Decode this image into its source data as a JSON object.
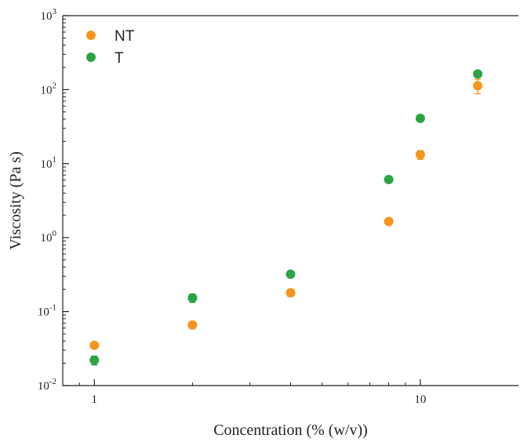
{
  "chart_data": {
    "type": "scatter",
    "title": "",
    "xlabel": "Concentration (% (w/v))",
    "ylabel": "Viscosity (Pa s)",
    "x_scale": "log",
    "y_scale": "log",
    "xlim": [
      0.8,
      20
    ],
    "ylim": [
      0.01,
      1000
    ],
    "x_ticks": [
      {
        "value": 1,
        "label": "1"
      },
      {
        "value": 10,
        "label": "10"
      }
    ],
    "y_ticks": [
      {
        "value": 0.01,
        "base": "10",
        "exp": "-2"
      },
      {
        "value": 0.1,
        "base": "10",
        "exp": "-1"
      },
      {
        "value": 1,
        "base": "10",
        "exp": "0"
      },
      {
        "value": 10,
        "base": "10",
        "exp": "1"
      },
      {
        "value": 100,
        "base": "10",
        "exp": "2"
      },
      {
        "value": 1000,
        "base": "10",
        "exp": "3"
      }
    ],
    "grid": false,
    "legend_position": "top-left",
    "series": [
      {
        "name": "NT",
        "color": "#f7941d",
        "points": [
          {
            "x": 1,
            "y": 0.035,
            "err": 0.003
          },
          {
            "x": 2,
            "y": 0.066,
            "err": 0.007
          },
          {
            "x": 4,
            "y": 0.18,
            "err": 0.02
          },
          {
            "x": 8,
            "y": 1.65,
            "err": 0.1
          },
          {
            "x": 10,
            "y": 13.2,
            "err": 1.8
          },
          {
            "x": 15,
            "y": 113,
            "err": 25
          }
        ]
      },
      {
        "name": "T",
        "color": "#2ca444",
        "points": [
          {
            "x": 1,
            "y": 0.022,
            "err": 0.003
          },
          {
            "x": 2,
            "y": 0.153,
            "err": 0.02
          },
          {
            "x": 4,
            "y": 0.32,
            "err": 0.02
          },
          {
            "x": 8,
            "y": 6.1,
            "err": 0.3
          },
          {
            "x": 10,
            "y": 41,
            "err": 2
          },
          {
            "x": 15,
            "y": 163,
            "err": 8
          }
        ]
      }
    ]
  }
}
